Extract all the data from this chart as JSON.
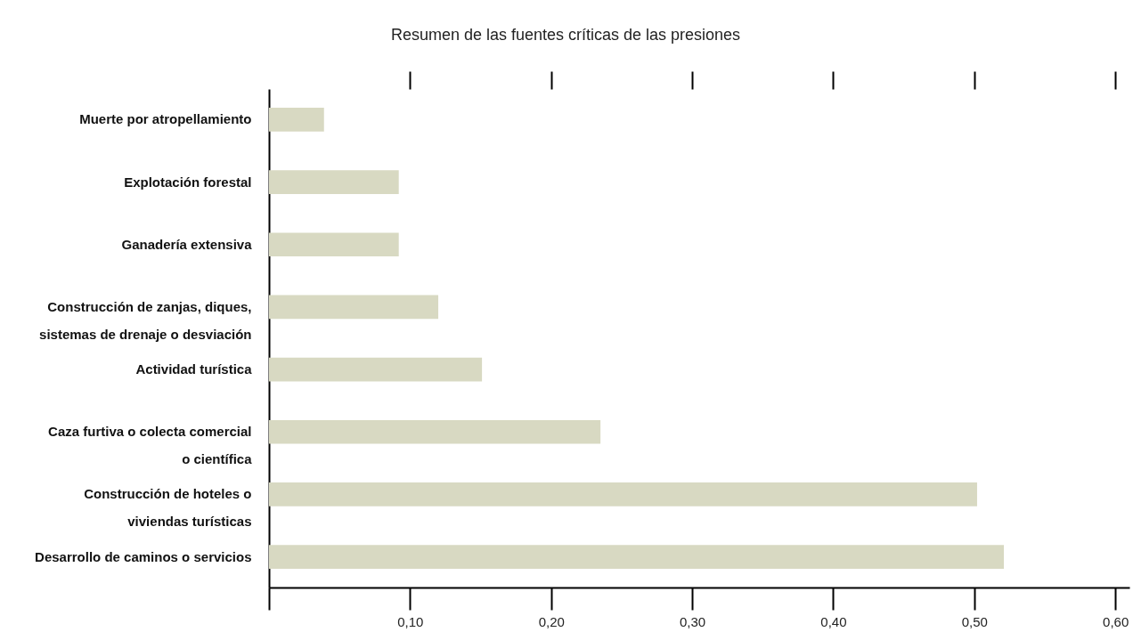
{
  "chart_data": {
    "type": "bar",
    "orientation": "horizontal",
    "title": "Resumen de las fuentes críticas de las presiones",
    "categories": [
      "Muerte por atropellamiento",
      "Explotación forestal",
      "Ganadería extensiva",
      "Construcción de zanjas, diques, sistemas de drenaje o desviación",
      "Actividad turística",
      "Caza furtiva o colecta comercial o científica",
      "Construcción de hoteles o viviendas turísticas",
      "Desarrollo de caminos o servicios"
    ],
    "values": [
      0.039,
      0.092,
      0.092,
      0.12,
      0.151,
      0.235,
      0.502,
      0.521
    ],
    "xticks": [
      {
        "value": 0,
        "label": null
      },
      {
        "value": 0.1,
        "label": "0,10"
      },
      {
        "value": 0.2,
        "label": "0,20"
      },
      {
        "value": 0.3,
        "label": "0,30"
      },
      {
        "value": 0.4,
        "label": "0,40"
      },
      {
        "value": 0.5,
        "label": "0,50"
      },
      {
        "value": 0.6,
        "label": "0,60"
      }
    ],
    "color": "#d8d9c2",
    "xlim": [
      0,
      0.61
    ]
  }
}
